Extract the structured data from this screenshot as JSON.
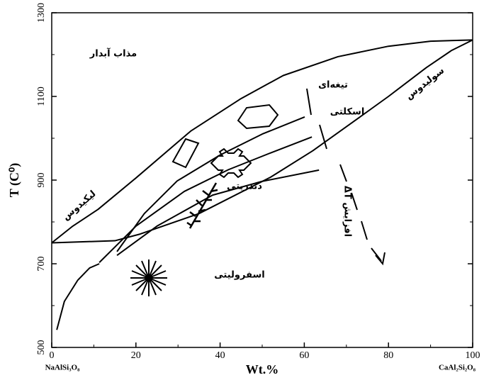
{
  "chart_data": {
    "type": "line",
    "xlabel": "Wt.%",
    "ylabel": "T (C⁰)",
    "x_end_labels": [
      "NaAlSi₃O₈",
      "CaAl₂Si₂O₈"
    ],
    "xlim": [
      0,
      100
    ],
    "ylim": [
      500,
      1300
    ],
    "xticks": [
      0,
      20,
      40,
      60,
      80,
      100
    ],
    "yticks": [
      500,
      700,
      900,
      1100,
      1300
    ],
    "series": [
      {
        "color": "#000000",
        "x": [
          0,
          5,
          11,
          20,
          33,
          45,
          55,
          68,
          80,
          90,
          100
        ],
        "values": [
          750,
          790,
          830,
          905,
          1017,
          1095,
          1150,
          1195,
          1220,
          1232,
          1235
        ]
      },
      {
        "color": "#000000",
        "x": [
          0,
          15,
          21,
          35,
          52,
          62,
          72,
          80,
          89,
          95,
          100
        ],
        "values": [
          750,
          755,
          771,
          820,
          907,
          970,
          1042,
          1100,
          1169,
          1210,
          1235
        ]
      },
      {
        "color": "#000000",
        "x": [
          15.5,
          22,
          29.8,
          40,
          50,
          60.1
        ],
        "values": [
          729,
          820,
          898,
          960,
          1010,
          1051
        ]
      },
      {
        "color": "#000000",
        "x": [
          11.3,
          20,
          31.5,
          42,
          52,
          61.8
        ],
        "values": [
          703,
          790,
          873,
          925,
          965,
          1003
        ]
      },
      {
        "color": "#000000",
        "x": [
          15.5,
          25,
          38.2,
          50,
          63.5
        ],
        "values": [
          720,
          790,
          864,
          897,
          924
        ]
      },
      {
        "color": "#000000",
        "x": [
          1.2,
          3,
          6.2,
          9,
          11.3
        ],
        "values": [
          542,
          610,
          661,
          690,
          700
        ]
      }
    ],
    "annotations": [
      "مذاب آبدار",
      "تیغه‌ای",
      "اسکلتی",
      "سولیدوس",
      "لیکیدوس",
      "دندریتی",
      "اسفرولیتی",
      "افزایش ΔT"
    ]
  }
}
